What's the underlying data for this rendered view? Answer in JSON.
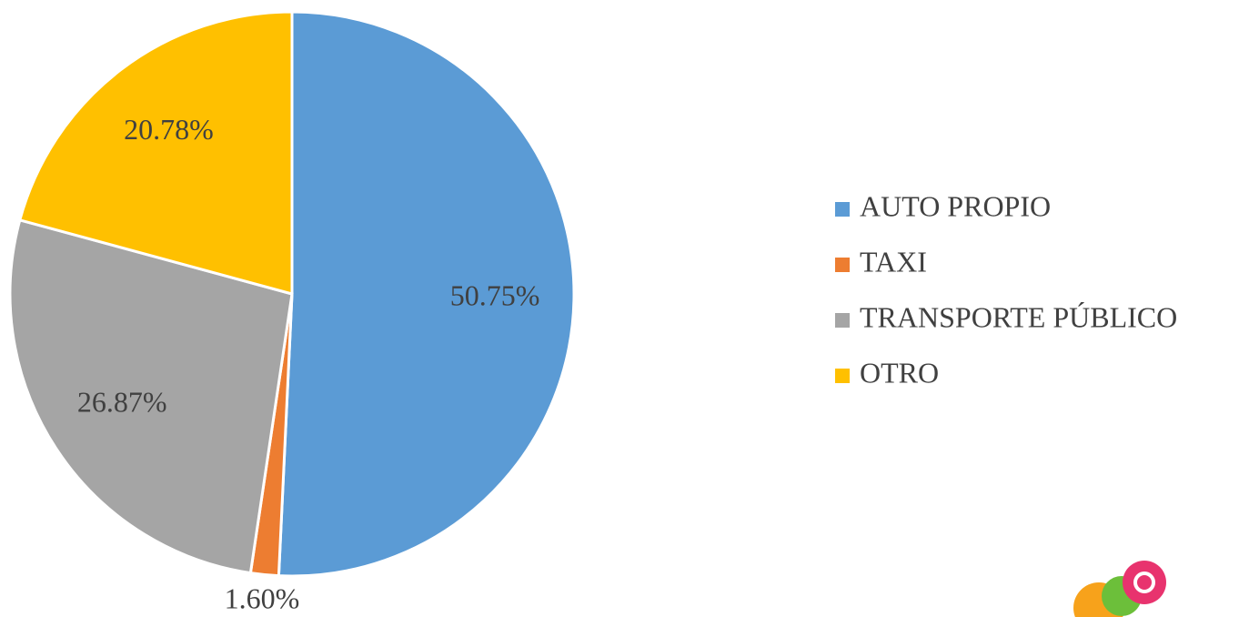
{
  "chart_data": {
    "type": "pie",
    "categories": [
      "AUTO PROPIO",
      "TAXI",
      "TRANSPORTE PÚBLICO",
      "OTRO"
    ],
    "values": [
      50.75,
      1.6,
      26.87,
      20.78
    ],
    "value_labels": [
      "50.75%",
      "1.60%",
      "26.87%",
      "20.78%"
    ],
    "colors": [
      "#5b9bd5",
      "#ed7d31",
      "#a5a5a5",
      "#ffc000"
    ],
    "legend": "right"
  }
}
